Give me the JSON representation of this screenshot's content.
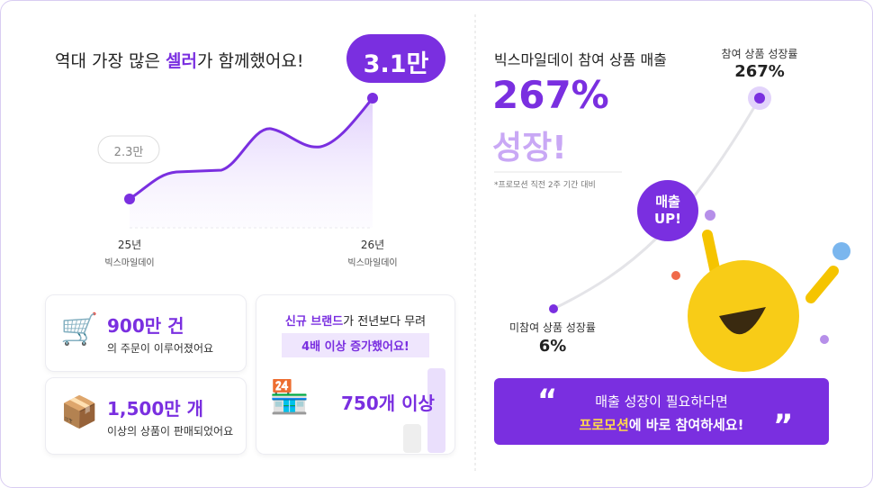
{
  "left": {
    "headline": {
      "before": "역대 가장 많은 ",
      "highlight": "셀러",
      "after": "가 함께했어요!"
    },
    "badge": "3.1만",
    "start_label": "2.3만",
    "x_labels": [
      {
        "year": "25년",
        "name": "빅스마일데이"
      },
      {
        "year": "26년",
        "name": "빅스마일데이"
      }
    ],
    "cards": [
      {
        "title": "900만 건",
        "text": "의 주문이 이루어졌어요"
      },
      {
        "title": "1,500만 개",
        "text": "이상의 상품이 판매되었어요"
      }
    ],
    "brand_card": {
      "line1_highlight": "신규 브랜드",
      "line1_rest": "가 전년보다 무려",
      "line2": "4배 이상 증가했어요!",
      "value": "750개 이상"
    }
  },
  "right": {
    "title": "빅스마일데이 참여 상품 매출",
    "big": "267%",
    "sub": "성장!",
    "note": "*프로모션 직전 2주 기간 대비",
    "top_label": "참여 상품 성장률",
    "top_value": "267%",
    "bottom_label": "미참여 상품 성장률",
    "bottom_value": "6%",
    "bubble": [
      "매출",
      "UP!"
    ],
    "banner": {
      "line1": "매출 성장이 필요하다면",
      "line2_highlight": "프로모션",
      "line2_rest": "에 바로 참여하세요!"
    }
  }
}
